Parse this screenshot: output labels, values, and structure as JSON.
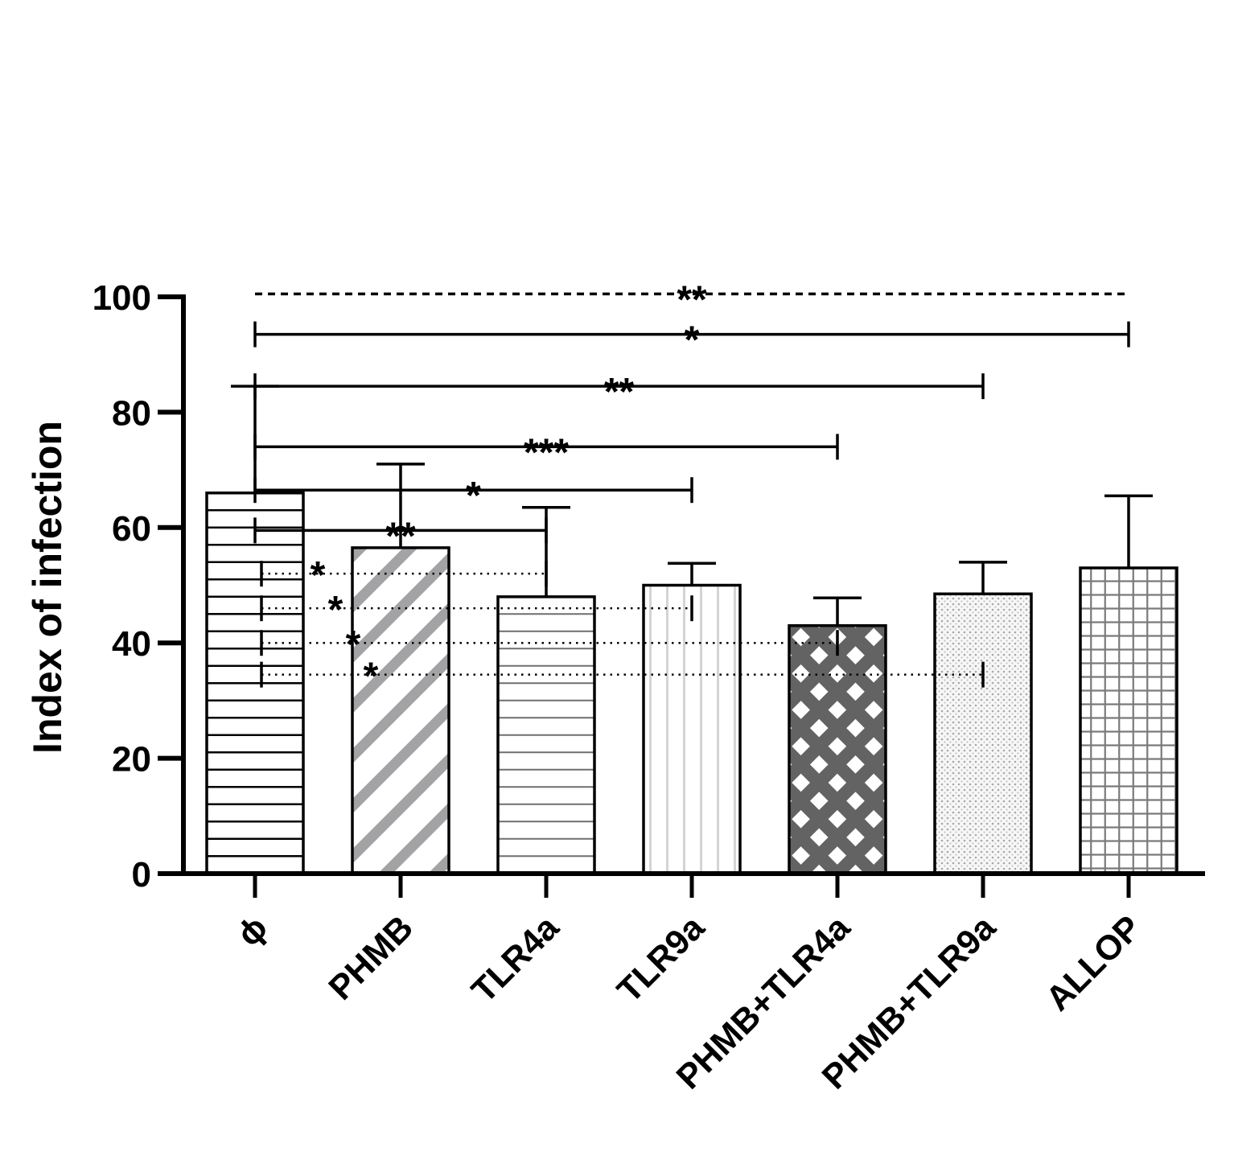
{
  "chart_data": {
    "type": "bar",
    "title": "",
    "xlabel": "",
    "ylabel": "Index of infection",
    "ylim": [
      0,
      100
    ],
    "yticks": [
      "0",
      "20",
      "40",
      "60",
      "80",
      "100"
    ],
    "grid": false,
    "categories": [
      "ϕ",
      "PHMB",
      "TLR4a",
      "TLR9a",
      "PHMB+TLR4a",
      "PHMB+TLR9a",
      "ALLOP"
    ],
    "values": [
      66,
      56.5,
      48,
      50,
      43,
      48.5,
      53
    ],
    "errors": [
      18.5,
      14.5,
      15.5,
      3.8,
      4.8,
      5.5,
      12.5
    ],
    "patterns": [
      "h-lines-black",
      "diagonal-gray",
      "h-lines-gray",
      "v-lines-light",
      "crosshatch-dark",
      "dots-light",
      "grid-gray"
    ],
    "comparisons": [
      {
        "from": 0,
        "to": 6,
        "label": "**",
        "style": "dashed",
        "level": 100.5
      },
      {
        "from": 0,
        "to": 6,
        "label": "*",
        "style": "solid",
        "level": 93.5
      },
      {
        "from": 0,
        "to": 5,
        "label": "**",
        "style": "solid",
        "level": 84.5
      },
      {
        "from": 0,
        "to": 4,
        "label": "***",
        "style": "solid",
        "level": 74
      },
      {
        "from": 0,
        "to": 3,
        "label": "*",
        "style": "solid",
        "level": 66.5
      },
      {
        "from": 0,
        "to": 2,
        "label": "**",
        "style": "solid",
        "level": 59.5
      },
      {
        "from": 0,
        "to": 2,
        "label": "*",
        "style": "dotted",
        "level": 52
      },
      {
        "from": 0,
        "to": 3,
        "label": "*",
        "style": "dotted",
        "level": 46
      },
      {
        "from": 0,
        "to": 4,
        "label": "*",
        "style": "dotted",
        "level": 40
      },
      {
        "from": 0,
        "to": 5,
        "label": "*",
        "style": "dotted",
        "level": 34.5
      }
    ]
  }
}
